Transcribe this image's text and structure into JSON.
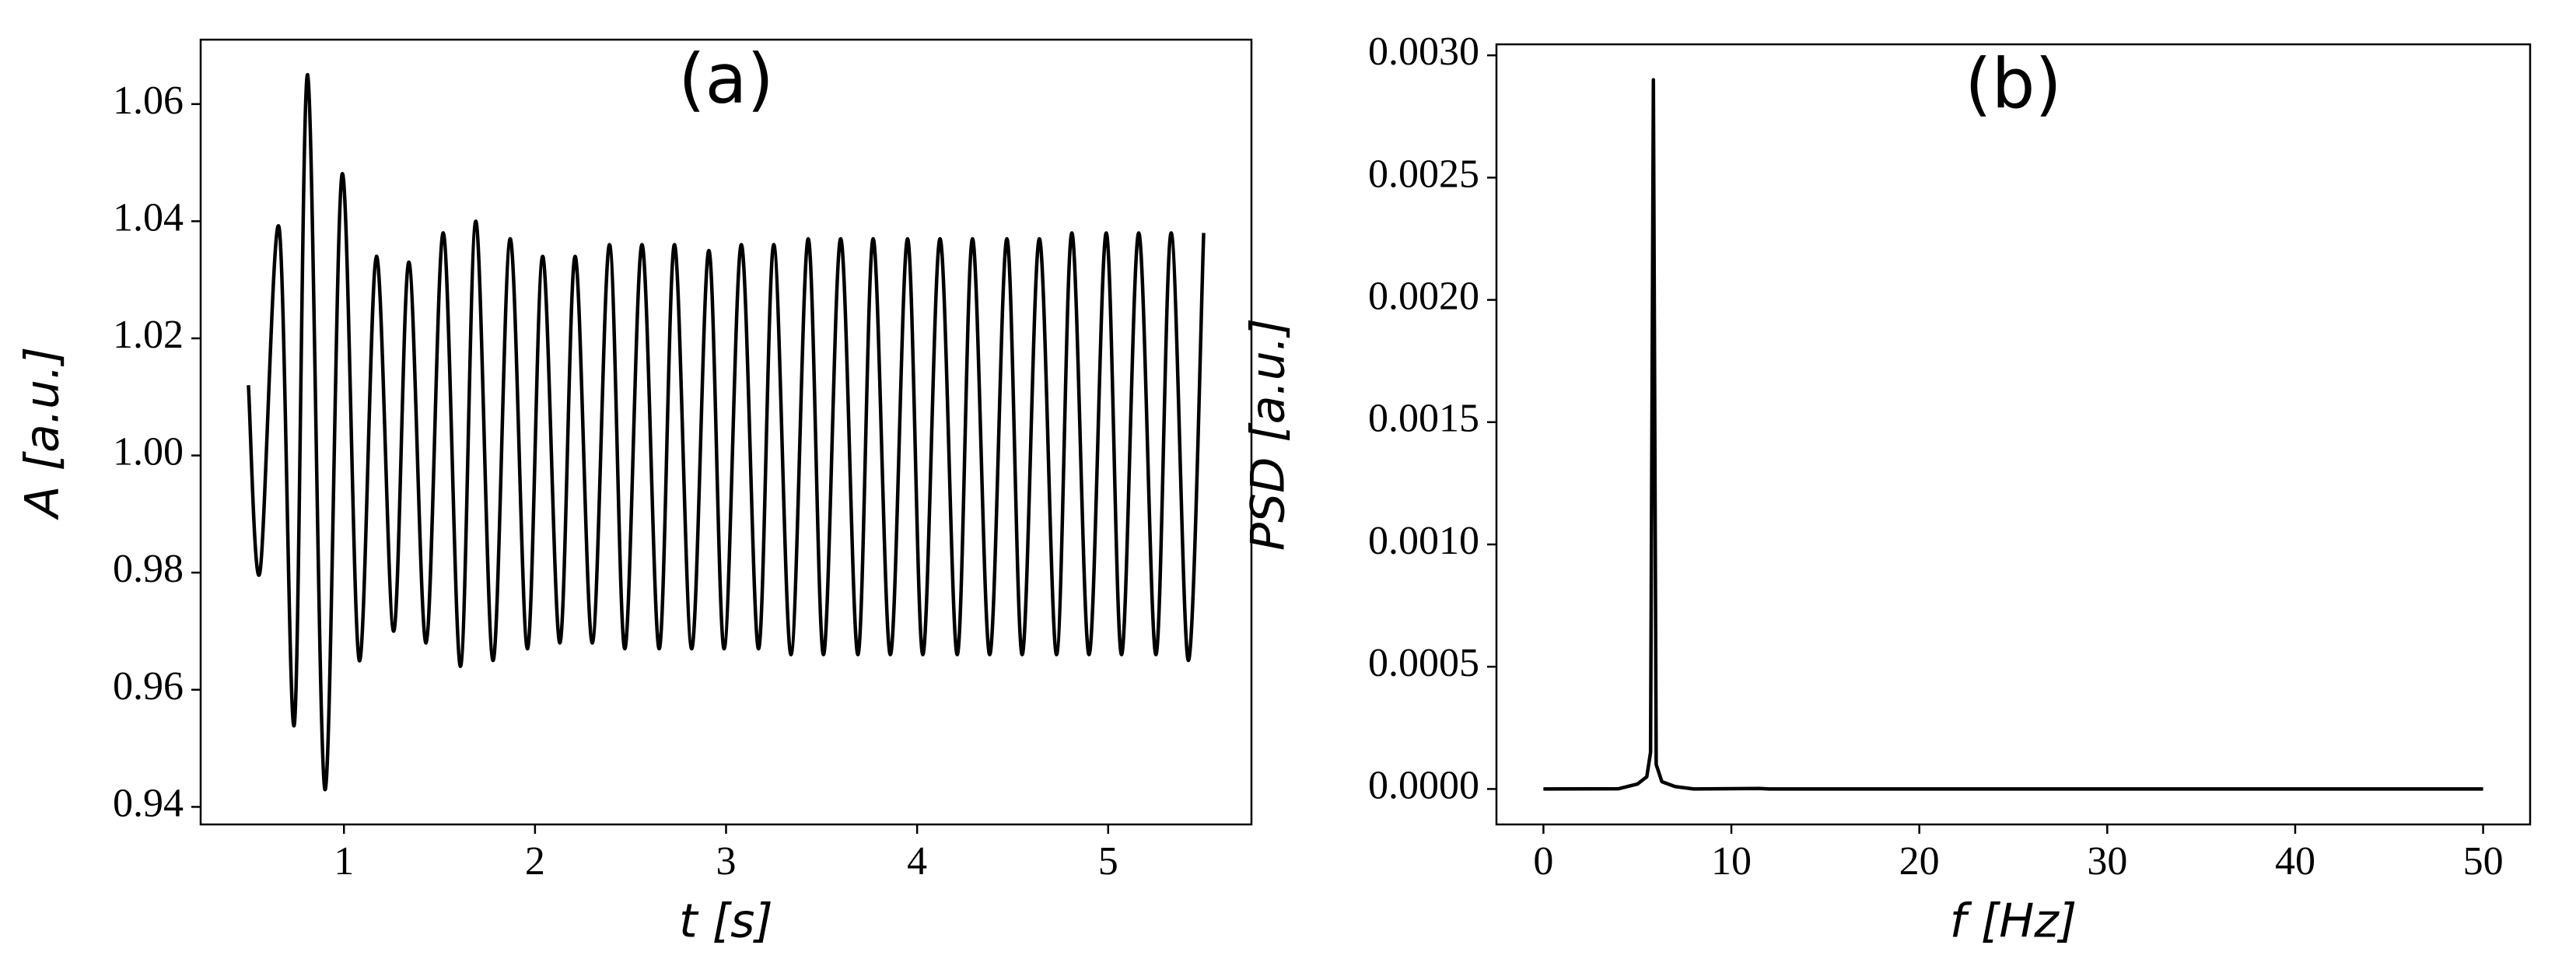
{
  "chart_data": [
    {
      "type": "line",
      "title": "(a)",
      "x_label": "t [s]",
      "y_label": "A [a.u.]",
      "curve": "smooth",
      "color": "#000000",
      "x": [
        0.5,
        0.56,
        0.66,
        0.74,
        0.81,
        0.9,
        0.99,
        1.08,
        1.17,
        1.26,
        1.34,
        1.43,
        1.52,
        1.61,
        1.69,
        1.78,
        1.87,
        1.96,
        2.04,
        2.13,
        2.21,
        2.3,
        2.39,
        2.47,
        2.56,
        2.65,
        2.73,
        2.82,
        2.91,
        2.99,
        3.08,
        3.17,
        3.25,
        3.34,
        3.43,
        3.51,
        3.6,
        3.69,
        3.77,
        3.86,
        3.95,
        4.03,
        4.12,
        4.21,
        4.29,
        4.38,
        4.47,
        4.55,
        4.64,
        4.73,
        4.81,
        4.9,
        4.99,
        5.07,
        5.16,
        5.25,
        5.33,
        5.42,
        5.5
      ],
      "values": [
        1.012,
        0.98,
        1.039,
        0.954,
        1.065,
        0.943,
        1.048,
        0.965,
        1.034,
        0.97,
        1.033,
        0.968,
        1.038,
        0.964,
        1.04,
        0.965,
        1.037,
        0.967,
        1.034,
        0.968,
        1.034,
        0.968,
        1.036,
        0.967,
        1.036,
        0.967,
        1.036,
        0.967,
        1.035,
        0.967,
        1.036,
        0.967,
        1.036,
        0.966,
        1.037,
        0.966,
        1.037,
        0.966,
        1.037,
        0.966,
        1.037,
        0.966,
        1.037,
        0.966,
        1.037,
        0.966,
        1.037,
        0.966,
        1.037,
        0.966,
        1.038,
        0.966,
        1.038,
        0.966,
        1.038,
        0.966,
        1.038,
        0.965,
        1.038
      ],
      "xlim": [
        0.25,
        5.75
      ],
      "ylim": [
        0.937,
        1.071
      ],
      "xticks": [
        1,
        2,
        3,
        4,
        5
      ],
      "yticks": [
        0.94,
        0.96,
        0.98,
        {
          "value": 1.0,
          "label": "1.00"
        },
        1.02,
        1.04,
        1.06
      ]
    },
    {
      "type": "line",
      "title": "(b)",
      "x_label": "f [Hz]",
      "y_label": "PSD [a.u.]",
      "curve": "linear",
      "color": "#000000",
      "x": [
        0,
        4,
        5,
        5.5,
        5.7,
        5.85,
        6.0,
        6.3,
        7,
        8,
        11.5,
        12,
        50
      ],
      "values": [
        0,
        1e-06,
        2e-05,
        5e-05,
        0.00015,
        0.0029,
        0.0001,
        3e-05,
        1e-05,
        0,
        2e-06,
        0,
        0
      ],
      "xlim": [
        -2.5,
        52.5
      ],
      "ylim": [
        -0.000145,
        0.003045
      ],
      "xticks": [
        0,
        10,
        20,
        30,
        40,
        50
      ],
      "yticks": [
        {
          "value": 0,
          "label": "0.0000"
        },
        {
          "value": 0.0005,
          "label": "0.0005"
        },
        {
          "value": 0.001,
          "label": "0.0010"
        },
        {
          "value": 0.0015,
          "label": "0.0015"
        },
        {
          "value": 0.002,
          "label": "0.0020"
        },
        {
          "value": 0.0025,
          "label": "0.0025"
        },
        {
          "value": 0.003,
          "label": "0.0030"
        }
      ]
    }
  ]
}
